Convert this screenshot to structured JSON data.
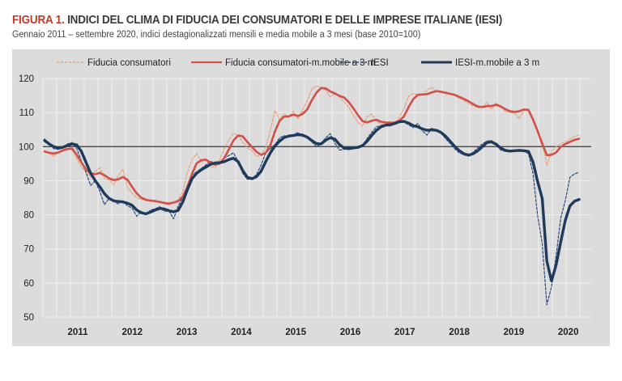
{
  "header": {
    "figure_label": "FIGURA 1.",
    "title": "INDICI DEL CLIMA DI FIDUCIA DEI CONSUMATORI E DELLE IMPRESE ITALIANE (IESI)",
    "subtitle": "Gennaio 2011 – settembre 2020, indici destagionalizzati mensili e media mobile a 3 mesi (base 2010=100)"
  },
  "colors": {
    "consumer": "#d0504a",
    "consumer_raw": "#e8a07a",
    "iesi": "#1f3a5a",
    "iesi_raw": "#2a4a78",
    "panel": "#dcdcdc",
    "grid": "#efefef",
    "reference": "#333333"
  },
  "chart_data": {
    "type": "line",
    "title": "INDICI DEL CLIMA DI FIDUCIA DEI CONSUMATORI E DELLE IMPRESE ITALIANE (IESI)",
    "xlabel": "",
    "ylabel": "",
    "ylim": [
      50,
      120
    ],
    "yticks": [
      50,
      60,
      70,
      80,
      90,
      100,
      110,
      120
    ],
    "reference_line": 100,
    "grid": true,
    "legend_position": "top",
    "x_start": "2011-01",
    "x_end": "2020-09",
    "xtick_labels": [
      "2011",
      "2012",
      "2013",
      "2014",
      "2015",
      "2016",
      "2017",
      "2018",
      "2019",
      "2020"
    ],
    "series": [
      {
        "name": "Fiducia consumatori",
        "style": "dashed-thin",
        "values": [
          98.5,
          98.0,
          97.2,
          98.4,
          99.2,
          99.8,
          99.0,
          96.5,
          94.0,
          92.6,
          91.0,
          92.8,
          93.8,
          90.6,
          90.2,
          88.8,
          91.4,
          93.4,
          88.0,
          86.4,
          85.0,
          84.6,
          84.2,
          84.0,
          84.1,
          83.6,
          83.2,
          83.0,
          83.8,
          84.4,
          86.8,
          92.5,
          96.0,
          98.0,
          95.6,
          96.4,
          94.2,
          93.8,
          96.2,
          99.4,
          102.0,
          104.0,
          103.2,
          101.4,
          99.6,
          98.8,
          97.2,
          97.6,
          99.8,
          104.8,
          110.6,
          108.0,
          109.6,
          108.6,
          110.4,
          108.2,
          110.8,
          113.4,
          116.8,
          117.8,
          117.4,
          116.6,
          114.6,
          115.6,
          114.4,
          113.2,
          111.6,
          109.2,
          107.2,
          106.0,
          108.8,
          109.6,
          107.4,
          106.6,
          107.0,
          107.4,
          106.8,
          108.6,
          111.2,
          114.8,
          115.6,
          115.2,
          115.0,
          116.6,
          117.4,
          116.2,
          115.8,
          116.2,
          115.4,
          115.0,
          114.2,
          113.6,
          112.6,
          112.0,
          111.4,
          111.6,
          113.0,
          111.0,
          112.8,
          111.6,
          110.4,
          110.0,
          109.8,
          108.2,
          110.6,
          110.9,
          107.8,
          104.0,
          102.0,
          94.4,
          98.6,
          100.0,
          100.8,
          101.4,
          102.2,
          103.0,
          103.4
        ]
      },
      {
        "name": "Fiducia consumatori-m.mobile a 3 m",
        "style": "solid-thick",
        "values": [
          98.6,
          98.2,
          98.0,
          98.3,
          98.9,
          99.3,
          99.4,
          97.6,
          95.4,
          93.3,
          92.2,
          91.9,
          92.3,
          91.6,
          90.7,
          90.2,
          90.4,
          91.1,
          90.3,
          88.2,
          86.3,
          85.0,
          84.4,
          84.2,
          84.0,
          83.8,
          83.5,
          83.3,
          83.6,
          84.0,
          85.3,
          88.2,
          92.0,
          95.1,
          96.0,
          96.2,
          95.3,
          94.7,
          95.0,
          96.7,
          99.2,
          101.8,
          103.3,
          103.0,
          101.4,
          99.9,
          98.5,
          97.6,
          98.2,
          100.4,
          104.5,
          107.6,
          108.8,
          108.9,
          109.4,
          109.0,
          109.6,
          110.9,
          113.6,
          115.8,
          117.2,
          117.1,
          116.2,
          115.6,
          114.9,
          114.4,
          113.1,
          111.3,
          109.3,
          107.5,
          107.1,
          107.6,
          107.9,
          107.3,
          107.1,
          107.0,
          107.1,
          107.6,
          108.9,
          111.6,
          113.9,
          115.2,
          115.3,
          115.4,
          115.9,
          116.3,
          116.1,
          115.8,
          115.5,
          115.2,
          114.6,
          114.0,
          113.3,
          112.5,
          111.8,
          111.6,
          111.9,
          111.9,
          112.3,
          111.8,
          111.0,
          110.4,
          110.2,
          110.4,
          110.9,
          110.8,
          108.0,
          104.6,
          100.8,
          97.5,
          97.6,
          98.3,
          99.9,
          100.8,
          101.4,
          102.0,
          102.3
        ]
      },
      {
        "name": "IESI",
        "style": "dashed-thin",
        "values": [
          102.3,
          100.8,
          99.4,
          99.2,
          99.6,
          100.8,
          101.2,
          99.4,
          95.8,
          92.4,
          88.6,
          90.0,
          86.8,
          83.0,
          84.8,
          84.0,
          83.2,
          84.2,
          82.6,
          82.0,
          79.6,
          81.0,
          80.2,
          81.4,
          81.8,
          82.4,
          81.0,
          81.2,
          78.8,
          82.6,
          85.2,
          88.8,
          91.8,
          92.6,
          93.6,
          94.6,
          95.8,
          94.8,
          95.2,
          96.6,
          97.4,
          98.2,
          95.6,
          92.2,
          90.4,
          90.6,
          91.8,
          94.6,
          98.2,
          99.4,
          100.6,
          102.6,
          103.2,
          102.8,
          103.4,
          104.2,
          103.0,
          102.6,
          101.4,
          100.0,
          100.8,
          102.6,
          103.8,
          101.0,
          99.0,
          99.2,
          99.8,
          100.0,
          99.4,
          100.4,
          102.4,
          104.2,
          105.8,
          106.2,
          106.6,
          106.0,
          107.2,
          107.6,
          107.2,
          106.4,
          105.6,
          106.8,
          104.6,
          103.4,
          105.4,
          104.8,
          104.0,
          102.4,
          101.0,
          99.4,
          98.2,
          97.6,
          97.2,
          98.4,
          99.6,
          100.8,
          101.6,
          101.8,
          100.4,
          99.0,
          98.6,
          98.8,
          99.0,
          99.2,
          98.6,
          98.0,
          92.2,
          79.8,
          71.6,
          53.6,
          58.8,
          67.8,
          79.0,
          84.2,
          91.0,
          92.0,
          92.5
        ]
      },
      {
        "name": "IESI-m.mobile a 3 m",
        "style": "solid-thick",
        "values": [
          101.8,
          100.8,
          100.0,
          99.6,
          99.8,
          100.4,
          100.8,
          100.5,
          98.6,
          95.4,
          92.2,
          90.0,
          88.2,
          86.2,
          84.8,
          84.1,
          83.9,
          83.8,
          83.4,
          82.8,
          81.4,
          80.6,
          80.3,
          80.8,
          81.4,
          81.9,
          81.7,
          81.2,
          80.9,
          81.3,
          83.8,
          87.4,
          90.6,
          92.2,
          93.2,
          94.0,
          94.8,
          95.2,
          95.3,
          95.6,
          96.2,
          96.6,
          95.6,
          93.0,
          91.0,
          90.6,
          91.2,
          92.8,
          95.6,
          98.2,
          100.2,
          101.6,
          102.7,
          103.1,
          103.3,
          103.5,
          103.4,
          102.8,
          101.8,
          100.9,
          100.8,
          101.9,
          102.6,
          102.2,
          100.6,
          99.6,
          99.4,
          99.6,
          99.8,
          100.3,
          101.6,
          103.3,
          104.8,
          105.8,
          106.3,
          106.4,
          106.8,
          107.3,
          107.4,
          106.9,
          106.2,
          105.8,
          105.2,
          104.8,
          104.9,
          104.8,
          104.2,
          103.1,
          101.6,
          100.1,
          98.8,
          97.9,
          97.5,
          97.9,
          98.8,
          100.0,
          101.2,
          101.4,
          100.7,
          99.6,
          98.9,
          98.7,
          98.8,
          98.9,
          98.8,
          98.6,
          95.5,
          89.8,
          84.8,
          66.4,
          60.6,
          65.2,
          72.0,
          78.4,
          82.6,
          84.0,
          84.5
        ]
      }
    ]
  }
}
